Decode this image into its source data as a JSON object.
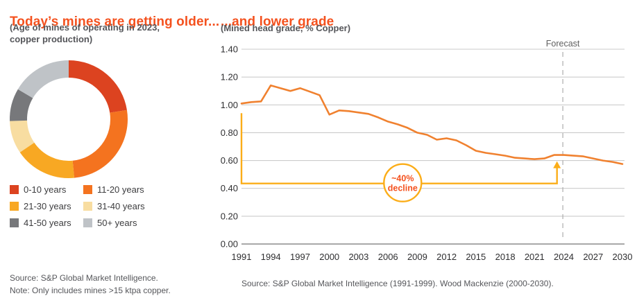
{
  "left_panel": {
    "title": "Today’s mines are getting older...",
    "subtitle_line1": "(Age of mines of operating in 2023,",
    "subtitle_line2": "copper production)",
    "source": "Source: S&P Global Market Intelligence.",
    "note": "Note: Only includes mines >15 ktpa copper."
  },
  "right_panel": {
    "title": "...and lower grade",
    "subtitle": "(Mined head grade, % Copper)",
    "forecast_label": "Forecast",
    "annotation_line1": "~40%",
    "annotation_line2": "decline",
    "source": "Source: S&P Global Market Intelligence (1991-1999). Wood Mackenzie (2000-2030)."
  },
  "chart_data": [
    {
      "type": "pie",
      "donut": true,
      "title": "Today’s mines are getting older...",
      "subtitle": "(Age of mines of operating in 2023, copper production)",
      "start_angle": "top, clockwise",
      "segments": [
        {
          "label": "0-10 years",
          "value": 22.5,
          "color": "#DC4320"
        },
        {
          "label": "11-20 years",
          "value": 26.0,
          "color": "#F4731F"
        },
        {
          "label": "21-30 years",
          "value": 17.0,
          "color": "#F8A823"
        },
        {
          "label": "31-40 years",
          "value": 9.0,
          "color": "#F8DDA1"
        },
        {
          "label": "41-50 years",
          "value": 9.0,
          "color": "#77787B"
        },
        {
          "label": "50+ years",
          "value": 16.5,
          "color": "#BFC3C7"
        }
      ],
      "legend_position": "below, two columns"
    },
    {
      "type": "line",
      "title": "...and lower grade",
      "ylabel": "Mined head grade, % Copper",
      "ylim": [
        0.0,
        1.4
      ],
      "y_tick_step": 0.2,
      "x_ticks": [
        1991,
        1994,
        1997,
        2000,
        2003,
        2006,
        2009,
        2012,
        2015,
        2018,
        2021,
        2024,
        2027,
        2030
      ],
      "x": [
        1991,
        1992,
        1993,
        1994,
        1995,
        1996,
        1997,
        1998,
        1999,
        2000,
        2001,
        2002,
        2003,
        2004,
        2005,
        2006,
        2007,
        2008,
        2009,
        2010,
        2011,
        2012,
        2013,
        2014,
        2015,
        2016,
        2017,
        2018,
        2019,
        2020,
        2021,
        2022,
        2023,
        2024,
        2025,
        2026,
        2027,
        2028,
        2029,
        2030
      ],
      "values": [
        1.01,
        1.02,
        1.025,
        1.14,
        1.12,
        1.1,
        1.12,
        1.095,
        1.07,
        0.93,
        0.96,
        0.955,
        0.945,
        0.935,
        0.91,
        0.88,
        0.86,
        0.835,
        0.8,
        0.785,
        0.75,
        0.76,
        0.745,
        0.71,
        0.67,
        0.655,
        0.645,
        0.635,
        0.62,
        0.615,
        0.61,
        0.615,
        0.64,
        0.64,
        0.635,
        0.63,
        0.615,
        0.6,
        0.59,
        0.575
      ],
      "grid": true,
      "line_color": "#F0812F",
      "forecast_divider_x": 2023.9,
      "forecast_label": "Forecast",
      "annotation": {
        "label_line1": "~40%",
        "label_line2": "decline",
        "color": "#FBAD18",
        "text_color": "#F4511E",
        "bracket_from_year": 1991,
        "bracket_top_value": 0.94,
        "bracket_level_value": 0.435,
        "arrow_year": 2023.3,
        "arrow_to_value": 0.585,
        "badge_center_year": 2007.5
      },
      "grid_color": "#CBCBCB",
      "baseline_color": "#8C8C8C",
      "divider_color": "#B3B3B3",
      "tick_label_color": "#2E2E30"
    }
  ]
}
